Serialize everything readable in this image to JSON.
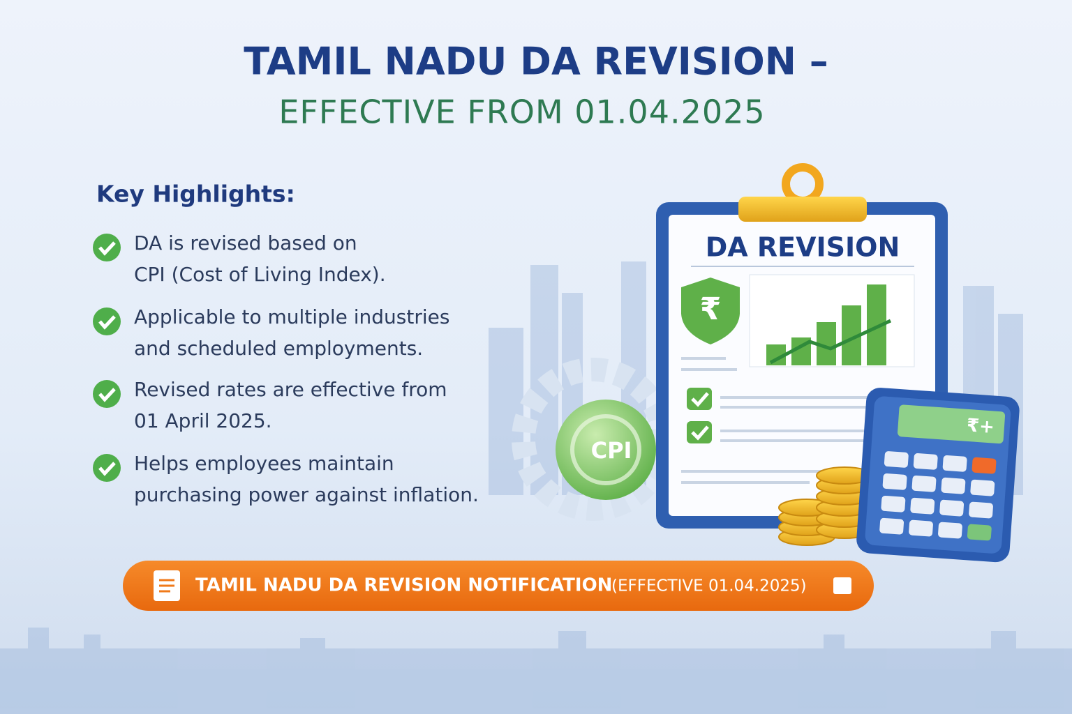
{
  "header": {
    "title_line1": "TAMIL NADU DA REVISION –",
    "title_line2": "EFFECTIVE FROM 01.04.2025"
  },
  "highlights": {
    "heading": "Key Highlights:",
    "items": [
      {
        "lines": [
          "DA is revised based on",
          "CPI (Cost of Living Index)."
        ]
      },
      {
        "lines": [
          "Applicable to multiple industries",
          "and scheduled employments."
        ]
      },
      {
        "lines": [
          "Revised rates are effective from",
          "01 April 2025."
        ]
      },
      {
        "lines": [
          "Helps employees maintain",
          "purchasing power against inflation."
        ]
      }
    ]
  },
  "illustration": {
    "clipboard_title": "DA REVISION",
    "shield_symbol": "₹",
    "gauge_label": "CPI",
    "calculator_display": "₹+"
  },
  "button": {
    "label": "TAMIL NADU DA REVISION NOTIFICATION",
    "suffix": "(EFFECTIVE 01.04.2025)"
  }
}
